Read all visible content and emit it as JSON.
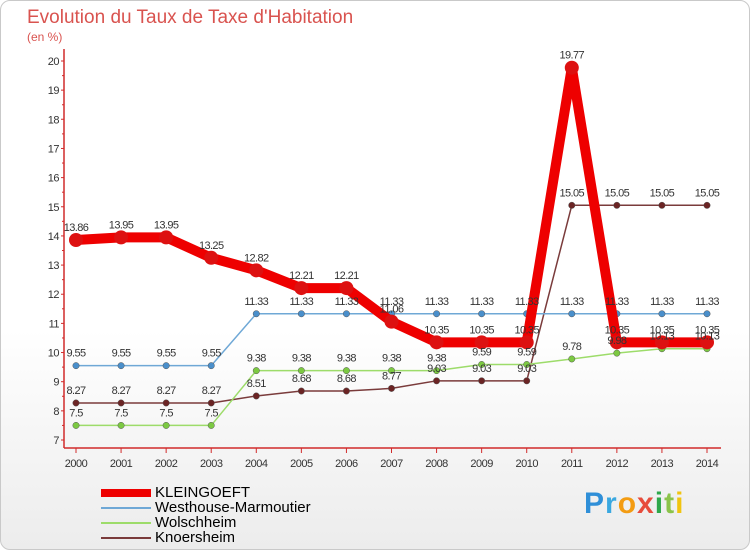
{
  "chart_data": {
    "type": "line",
    "title": "Evolution du Taux de Taxe d'Habitation",
    "subtitle": "(en %)",
    "x": [
      2000,
      2001,
      2002,
      2003,
      2004,
      2005,
      2006,
      2007,
      2008,
      2009,
      2010,
      2011,
      2012,
      2013,
      2014
    ],
    "ylim": [
      7,
      20
    ],
    "yticks": [
      7,
      8,
      9,
      10,
      11,
      12,
      13,
      14,
      15,
      16,
      17,
      18,
      19,
      20
    ],
    "grid": false,
    "legend_position": "bottom-left",
    "series": [
      {
        "name": "KLEINGOEFT",
        "color": "#ee0000",
        "point_color": "#dd1111",
        "values": [
          13.86,
          13.95,
          13.95,
          13.25,
          12.82,
          12.21,
          12.21,
          11.06,
          10.35,
          10.35,
          10.35,
          19.77,
          10.35,
          10.35,
          10.35
        ],
        "labels": [
          "13.86",
          "13.95",
          "13.95",
          "13.25",
          "12.82",
          "12.21",
          "12.21",
          "11.06",
          "10.35",
          "10.35",
          "10.35",
          "19.77",
          "10.35",
          "10.35",
          "10.35"
        ]
      },
      {
        "name": "Westhouse-Marmoutier",
        "color": "#6fa8d6",
        "point_color": "#4a8fcb",
        "values": [
          9.55,
          9.55,
          9.55,
          9.55,
          11.33,
          11.33,
          11.33,
          11.33,
          11.33,
          11.33,
          11.33,
          11.33,
          11.33,
          11.33,
          11.33
        ],
        "labels": [
          "9.55",
          "9.55",
          "9.55",
          "9.55",
          "11.33",
          "11.33",
          "11.33",
          "11.33",
          "11.33",
          "11.33",
          "11.33",
          "11.33",
          "11.33",
          "11.33",
          "11.33"
        ]
      },
      {
        "name": "Wolschheim",
        "color": "#9ddc6a",
        "point_color": "#7cc942",
        "values": [
          7.5,
          7.5,
          7.5,
          7.5,
          9.38,
          9.38,
          9.38,
          9.38,
          9.38,
          9.59,
          9.59,
          9.78,
          9.98,
          10.13,
          10.13
        ],
        "labels": [
          "7.5",
          "7.5",
          "7.5",
          "7.5",
          "9.38",
          "9.38",
          "9.38",
          "9.38",
          "9.38",
          "9.59",
          "9.59",
          "9.78",
          "9.98",
          "10.13",
          "10.13"
        ]
      },
      {
        "name": "Knoersheim",
        "color": "#7a3b3b",
        "point_color": "#6b2424",
        "values": [
          8.27,
          8.27,
          8.27,
          8.27,
          8.51,
          8.68,
          8.68,
          8.77,
          9.03,
          9.03,
          9.03,
          15.05,
          15.05,
          15.05,
          15.05
        ],
        "labels": [
          "8.27",
          "8.27",
          "8.27",
          "8.27",
          "8.51",
          "8.68",
          "8.68",
          "8.77",
          "9.03",
          "9.03",
          "9.03",
          "15.05",
          "15.05",
          "15.05",
          "15.05"
        ]
      }
    ]
  },
  "legend": {
    "items": [
      {
        "label": "KLEINGOEFT",
        "color": "#ee0000"
      },
      {
        "label": "Westhouse-Marmoutier",
        "color": "#6fa8d6"
      },
      {
        "label": "Wolschheim",
        "color": "#9ddc6a"
      },
      {
        "label": "Knoersheim",
        "color": "#7a3b3b"
      }
    ]
  },
  "brand": {
    "letters": [
      {
        "ch": "P",
        "color": "#2f8fd8"
      },
      {
        "ch": "r",
        "color": "#3aa8e0"
      },
      {
        "ch": "o",
        "color": "#f39c12"
      },
      {
        "ch": "x",
        "color": "#e74c3c"
      },
      {
        "ch": "i",
        "color": "#2ea84a"
      },
      {
        "ch": "t",
        "color": "#8bc34a"
      },
      {
        "ch": "i",
        "color": "#f1c40f"
      }
    ]
  }
}
